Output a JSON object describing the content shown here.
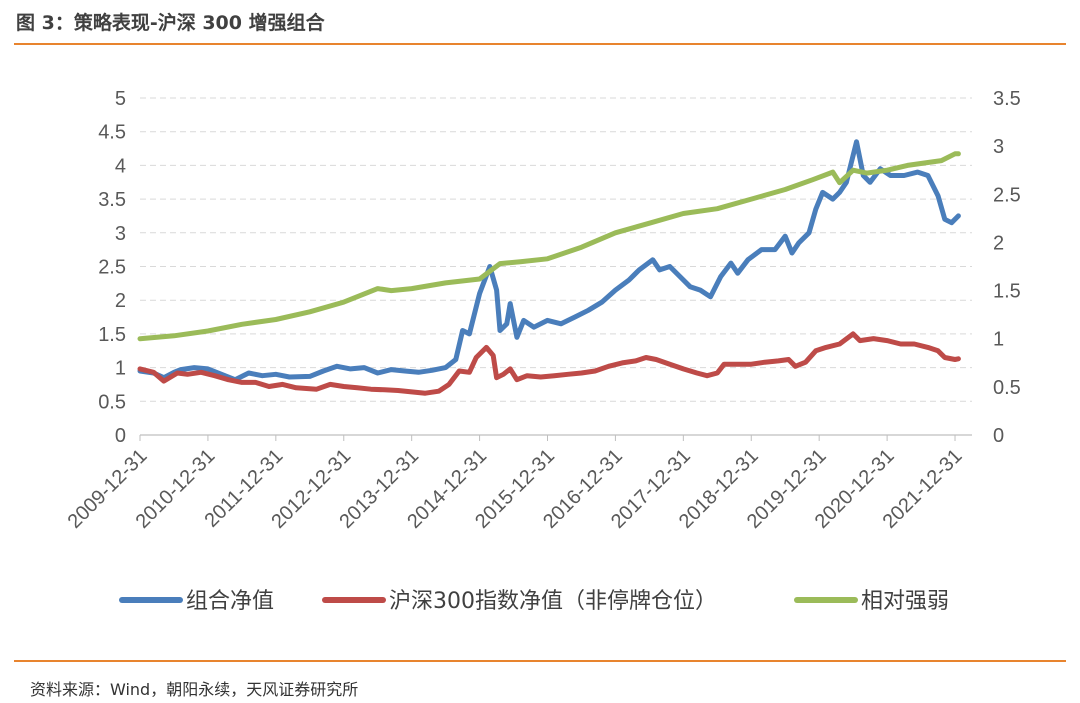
{
  "header": {
    "title": "图 3：策略表现-沪深 300 增强组合"
  },
  "footer": {
    "source": "资料来源：Wind，朝阳永续，天风证券研究所"
  },
  "colors": {
    "accent_rule": "#e8842e",
    "grid": "#d9d9d9"
  },
  "chart_data": {
    "type": "line",
    "x_ticks": [
      "2009-12-31",
      "2010-12-31",
      "2011-12-31",
      "2012-12-31",
      "2013-12-31",
      "2014-12-31",
      "2015-12-31",
      "2016-12-31",
      "2017-12-31",
      "2018-12-31",
      "2019-12-31",
      "2020-12-31",
      "2021-12-31"
    ],
    "y_left": {
      "min": 0,
      "max": 5,
      "ticks": [
        "0",
        "0.5",
        "1",
        "1.5",
        "2",
        "2.5",
        "3",
        "3.5",
        "4",
        "4.5",
        "5"
      ]
    },
    "y_right": {
      "min": 0,
      "max": 3.5,
      "ticks": [
        "0",
        "0.5",
        "1",
        "1.5",
        "2",
        "2.5",
        "3",
        "3.5"
      ]
    },
    "grid": "horizontal dashed",
    "legend_position": "bottom",
    "series": [
      {
        "name": "组合净值",
        "axis": "left",
        "color": "#4a7ebb",
        "points": [
          [
            0,
            0.95
          ],
          [
            0.2,
            0.92
          ],
          [
            0.35,
            0.85
          ],
          [
            0.5,
            0.93
          ],
          [
            0.6,
            0.97
          ],
          [
            0.8,
            1.0
          ],
          [
            1.0,
            0.98
          ],
          [
            1.2,
            0.9
          ],
          [
            1.4,
            0.82
          ],
          [
            1.6,
            0.92
          ],
          [
            1.8,
            0.88
          ],
          [
            2.0,
            0.9
          ],
          [
            2.2,
            0.86
          ],
          [
            2.5,
            0.87
          ],
          [
            2.7,
            0.95
          ],
          [
            2.9,
            1.02
          ],
          [
            3.1,
            0.98
          ],
          [
            3.3,
            1.0
          ],
          [
            3.5,
            0.92
          ],
          [
            3.7,
            0.97
          ],
          [
            3.9,
            0.95
          ],
          [
            4.1,
            0.93
          ],
          [
            4.3,
            0.96
          ],
          [
            4.5,
            1.0
          ],
          [
            4.65,
            1.12
          ],
          [
            4.75,
            1.55
          ],
          [
            4.85,
            1.5
          ],
          [
            5.0,
            2.1
          ],
          [
            5.15,
            2.5
          ],
          [
            5.25,
            2.15
          ],
          [
            5.3,
            1.55
          ],
          [
            5.4,
            1.65
          ],
          [
            5.45,
            1.95
          ],
          [
            5.55,
            1.45
          ],
          [
            5.65,
            1.7
          ],
          [
            5.8,
            1.6
          ],
          [
            6.0,
            1.7
          ],
          [
            6.2,
            1.65
          ],
          [
            6.4,
            1.75
          ],
          [
            6.6,
            1.85
          ],
          [
            6.8,
            1.97
          ],
          [
            7.0,
            2.15
          ],
          [
            7.2,
            2.3
          ],
          [
            7.35,
            2.45
          ],
          [
            7.55,
            2.6
          ],
          [
            7.65,
            2.45
          ],
          [
            7.8,
            2.5
          ],
          [
            7.95,
            2.35
          ],
          [
            8.1,
            2.2
          ],
          [
            8.25,
            2.15
          ],
          [
            8.4,
            2.05
          ],
          [
            8.55,
            2.35
          ],
          [
            8.7,
            2.55
          ],
          [
            8.8,
            2.4
          ],
          [
            8.95,
            2.6
          ],
          [
            9.15,
            2.75
          ],
          [
            9.35,
            2.75
          ],
          [
            9.5,
            2.95
          ],
          [
            9.6,
            2.7
          ],
          [
            9.7,
            2.85
          ],
          [
            9.85,
            3.0
          ],
          [
            9.95,
            3.35
          ],
          [
            10.05,
            3.6
          ],
          [
            10.2,
            3.5
          ],
          [
            10.3,
            3.6
          ],
          [
            10.4,
            3.75
          ],
          [
            10.55,
            4.35
          ],
          [
            10.65,
            3.85
          ],
          [
            10.75,
            3.75
          ],
          [
            10.9,
            3.95
          ],
          [
            11.05,
            3.85
          ],
          [
            11.25,
            3.85
          ],
          [
            11.45,
            3.9
          ],
          [
            11.6,
            3.85
          ],
          [
            11.75,
            3.55
          ],
          [
            11.85,
            3.2
          ],
          [
            11.95,
            3.15
          ],
          [
            12.05,
            3.25
          ]
        ]
      },
      {
        "name": "沪深300指数净值（非停牌仓位）",
        "axis": "left",
        "color": "#be4b48",
        "points": [
          [
            0,
            0.98
          ],
          [
            0.2,
            0.93
          ],
          [
            0.35,
            0.8
          ],
          [
            0.55,
            0.92
          ],
          [
            0.7,
            0.9
          ],
          [
            0.9,
            0.93
          ],
          [
            1.1,
            0.88
          ],
          [
            1.3,
            0.82
          ],
          [
            1.5,
            0.78
          ],
          [
            1.7,
            0.78
          ],
          [
            1.9,
            0.72
          ],
          [
            2.1,
            0.75
          ],
          [
            2.3,
            0.7
          ],
          [
            2.6,
            0.68
          ],
          [
            2.8,
            0.75
          ],
          [
            3.0,
            0.72
          ],
          [
            3.2,
            0.7
          ],
          [
            3.4,
            0.68
          ],
          [
            3.6,
            0.67
          ],
          [
            3.8,
            0.66
          ],
          [
            4.0,
            0.64
          ],
          [
            4.2,
            0.62
          ],
          [
            4.4,
            0.65
          ],
          [
            4.55,
            0.75
          ],
          [
            4.7,
            0.95
          ],
          [
            4.85,
            0.93
          ],
          [
            4.95,
            1.15
          ],
          [
            5.1,
            1.3
          ],
          [
            5.2,
            1.18
          ],
          [
            5.25,
            0.85
          ],
          [
            5.35,
            0.9
          ],
          [
            5.45,
            0.98
          ],
          [
            5.55,
            0.82
          ],
          [
            5.7,
            0.88
          ],
          [
            5.9,
            0.86
          ],
          [
            6.1,
            0.88
          ],
          [
            6.3,
            0.9
          ],
          [
            6.5,
            0.92
          ],
          [
            6.7,
            0.95
          ],
          [
            6.9,
            1.02
          ],
          [
            7.1,
            1.07
          ],
          [
            7.3,
            1.1
          ],
          [
            7.45,
            1.15
          ],
          [
            7.6,
            1.12
          ],
          [
            7.8,
            1.05
          ],
          [
            8.0,
            0.98
          ],
          [
            8.2,
            0.92
          ],
          [
            8.35,
            0.88
          ],
          [
            8.5,
            0.92
          ],
          [
            8.6,
            1.05
          ],
          [
            8.8,
            1.05
          ],
          [
            9.0,
            1.05
          ],
          [
            9.2,
            1.08
          ],
          [
            9.4,
            1.1
          ],
          [
            9.55,
            1.12
          ],
          [
            9.65,
            1.02
          ],
          [
            9.8,
            1.08
          ],
          [
            9.95,
            1.25
          ],
          [
            10.1,
            1.3
          ],
          [
            10.3,
            1.35
          ],
          [
            10.5,
            1.5
          ],
          [
            10.6,
            1.4
          ],
          [
            10.8,
            1.43
          ],
          [
            11.0,
            1.4
          ],
          [
            11.2,
            1.35
          ],
          [
            11.4,
            1.35
          ],
          [
            11.6,
            1.3
          ],
          [
            11.75,
            1.25
          ],
          [
            11.85,
            1.15
          ],
          [
            12.0,
            1.12
          ],
          [
            12.05,
            1.13
          ]
        ]
      },
      {
        "name": "相对强弱",
        "axis": "right",
        "color": "#9bbb59",
        "points": [
          [
            0,
            1.0
          ],
          [
            0.5,
            1.03
          ],
          [
            1.0,
            1.08
          ],
          [
            1.5,
            1.15
          ],
          [
            2.0,
            1.2
          ],
          [
            2.5,
            1.28
          ],
          [
            3.0,
            1.38
          ],
          [
            3.5,
            1.52
          ],
          [
            3.7,
            1.5
          ],
          [
            4.0,
            1.52
          ],
          [
            4.5,
            1.58
          ],
          [
            5.0,
            1.62
          ],
          [
            5.3,
            1.78
          ],
          [
            5.6,
            1.8
          ],
          [
            6.0,
            1.83
          ],
          [
            6.5,
            1.95
          ],
          [
            7.0,
            2.1
          ],
          [
            7.5,
            2.2
          ],
          [
            8.0,
            2.3
          ],
          [
            8.5,
            2.35
          ],
          [
            9.0,
            2.45
          ],
          [
            9.5,
            2.55
          ],
          [
            9.9,
            2.65
          ],
          [
            10.2,
            2.73
          ],
          [
            10.3,
            2.62
          ],
          [
            10.5,
            2.75
          ],
          [
            10.7,
            2.72
          ],
          [
            11.0,
            2.75
          ],
          [
            11.3,
            2.8
          ],
          [
            11.6,
            2.83
          ],
          [
            11.8,
            2.85
          ],
          [
            12.0,
            2.92
          ],
          [
            12.05,
            2.92
          ]
        ]
      }
    ]
  }
}
